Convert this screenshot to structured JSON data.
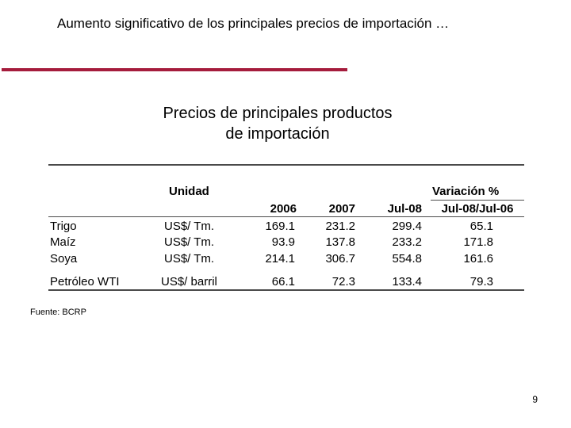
{
  "slide": {
    "title": "Aumento significativo de los principales precios  de importación …",
    "page_number": "9",
    "accent_color": "#a51c3c"
  },
  "table": {
    "title_line1": "Precios de principales productos",
    "title_line2": "de importación",
    "header_unidad": "Unidad",
    "header_variacion": "Variación %",
    "col_2006": "2006",
    "col_2007": "2007",
    "col_jul08": "Jul-08",
    "col_var": "Jul-08/Jul-06",
    "rows": [
      {
        "product": "Trigo",
        "unit": "US$/ Tm.",
        "y2006": "169.1",
        "y2007": "231.2",
        "jul08": "299.4",
        "var": "65.1"
      },
      {
        "product": "Maíz",
        "unit": "US$/ Tm.",
        "y2006": "93.9",
        "y2007": "137.8",
        "jul08": "233.2",
        "var": "171.8"
      },
      {
        "product": "Soya",
        "unit": "US$/ Tm.",
        "y2006": "214.1",
        "y2007": "306.7",
        "jul08": "554.8",
        "var": "161.6"
      },
      {
        "product": "Petróleo WTI",
        "unit": "US$/ barril",
        "y2006": "66.1",
        "y2007": "72.3",
        "jul08": "133.4",
        "var": "79.3"
      }
    ]
  },
  "source": "Fuente: BCRP"
}
